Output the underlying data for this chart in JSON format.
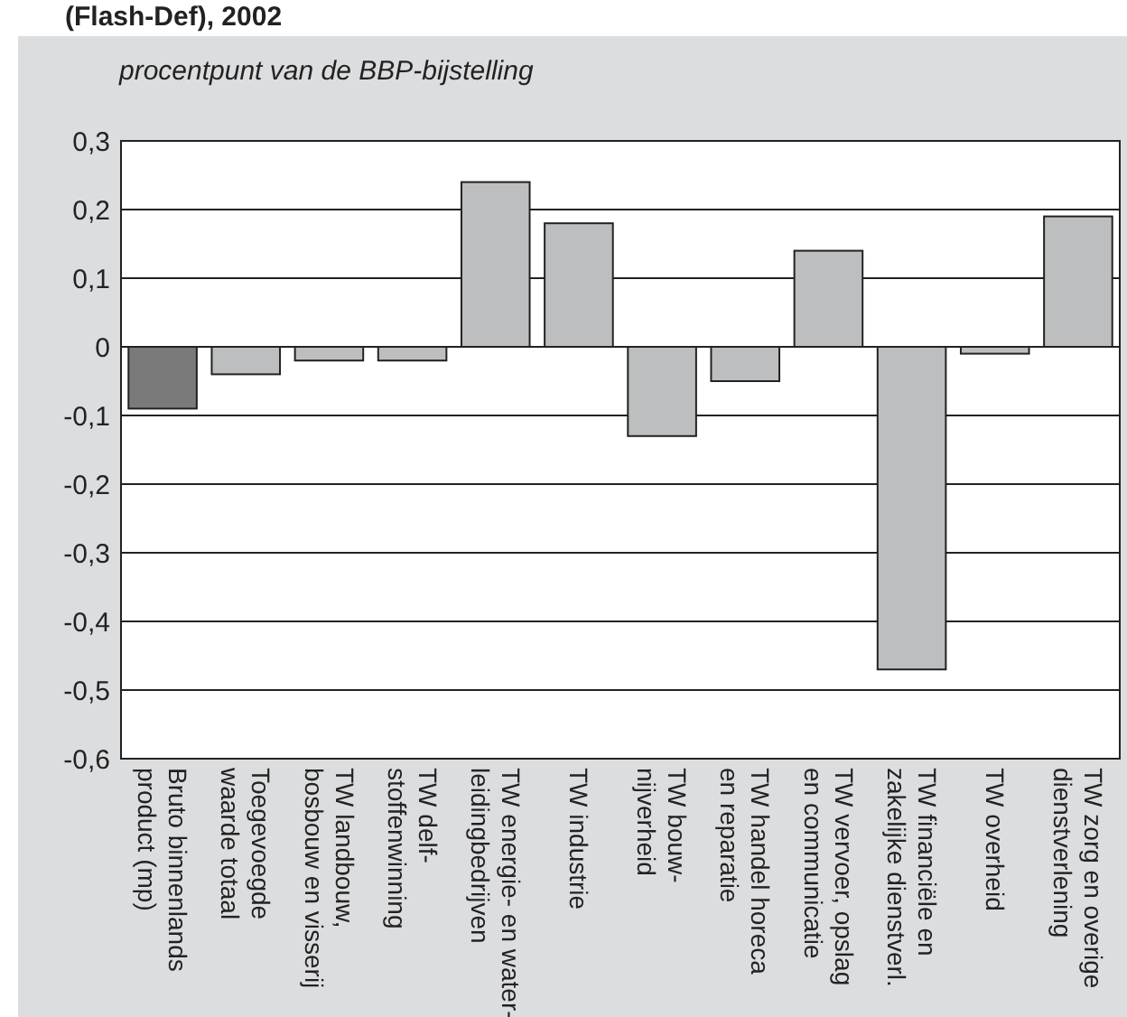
{
  "chart_data": {
    "type": "bar",
    "title": "(Flash-Def), 2002",
    "ylabel": "procentpunt van de BBP-bijstelling",
    "categories": [
      "Bruto binnenlands\nproduct (mp)",
      "Toegevoegde\nwaarde totaal",
      "TW landbouw,\nbosbouw en visserij",
      "TW delf-\nstoffenwinning",
      "TW energie- en water-\nleidingbedrijven",
      "TW industrie",
      "TW bouw-\nnijverheid",
      "TW handel horeca\nen reparatie",
      "TW vervoer, opslag\nen communicatie",
      "TW financiële en\nzakelijke dienstverl.",
      "TW overheid",
      "TW zorg en overige\ndienstverlening"
    ],
    "values": [
      -0.09,
      -0.04,
      -0.02,
      -0.02,
      0.24,
      0.18,
      -0.13,
      -0.05,
      0.14,
      -0.47,
      -0.01,
      0.19
    ],
    "colors": [
      "#7a7a7a",
      "#bdbebf",
      "#bdbebf",
      "#bdbebf",
      "#bdbebf",
      "#bdbebf",
      "#bdbebf",
      "#bdbebf",
      "#bdbebf",
      "#bdbebf",
      "#bdbebf",
      "#bdbebf"
    ],
    "ylim": [
      -0.6,
      0.3
    ],
    "yticks": [
      {
        "value": -0.6,
        "label": "-0,6"
      },
      {
        "value": -0.5,
        "label": "-0,5"
      },
      {
        "value": -0.4,
        "label": "-0,4"
      },
      {
        "value": -0.3,
        "label": "-0,3"
      },
      {
        "value": -0.2,
        "label": "-0,2"
      },
      {
        "value": -0.1,
        "label": "-0,1"
      },
      0,
      {
        "value": 0.1,
        "label": "0,1"
      },
      {
        "value": 0.2,
        "label": "0,2"
      },
      {
        "value": 0.3,
        "label": "0,3"
      }
    ],
    "grid": "y"
  }
}
